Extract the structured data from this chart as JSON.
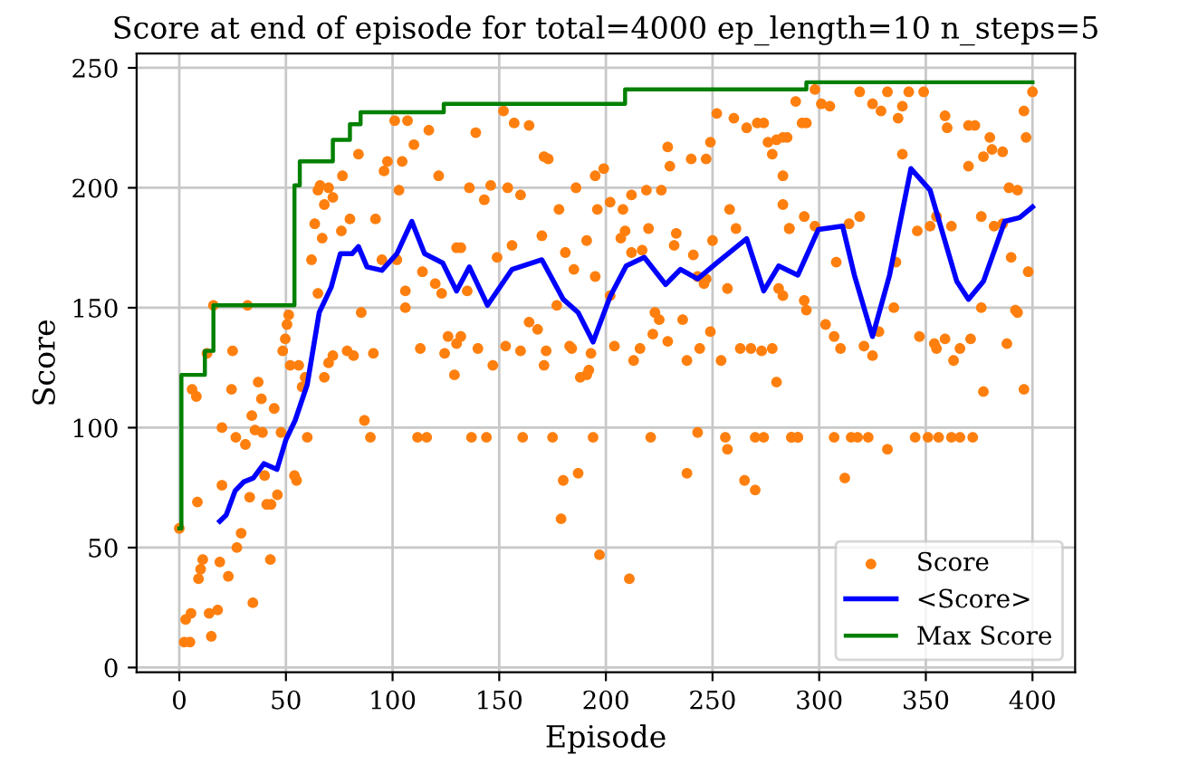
{
  "chart_data": {
    "type": "line",
    "title": "Score at end of episode for total=4000 ep_length=10 n_steps=5",
    "xlabel": "Episode",
    "ylabel": "Score",
    "xlim": [
      -20,
      420
    ],
    "xticks": [
      0,
      50,
      100,
      150,
      200,
      250,
      300,
      350,
      400
    ],
    "ylim": [
      -2,
      256
    ],
    "yticks": [
      0,
      50,
      100,
      150,
      200,
      250
    ],
    "grid": true,
    "legend": "bottom right",
    "series": [
      {
        "name": "Score",
        "type": "scatter",
        "marker": "circle",
        "color": "#ff7f0e",
        "x": [
          0,
          2.3,
          5,
          3,
          5.5,
          6,
          8,
          8.5,
          10,
          11,
          9,
          13,
          14,
          15,
          16,
          18,
          19,
          20,
          20,
          23,
          24.5,
          25,
          26.5,
          27,
          29,
          31,
          32,
          33,
          34.5,
          34,
          35.5,
          37,
          38.5,
          39,
          40,
          41,
          42.7,
          43,
          44.5,
          46,
          47.7,
          48.5,
          49.7,
          50.5,
          51.3,
          52,
          54,
          55,
          56,
          57.6,
          59,
          60,
          62,
          63.5,
          65,
          66,
          67,
          68,
          65,
          68,
          70,
          72,
          70,
          72,
          76,
          76.5,
          78.7,
          80,
          81.7,
          84,
          85.3,
          86.8,
          89.6,
          91,
          92,
          95,
          96,
          97.6,
          101,
          102,
          103,
          104.5,
          106,
          107,
          106,
          110,
          111.7,
          113,
          114,
          116,
          117,
          120,
          121.6,
          123,
          124.4,
          126,
          129,
          130,
          132,
          139,
          136,
          143,
          146,
          154,
          160,
          152,
          157,
          164,
          171,
          173,
          178,
          186,
          195,
          199,
          196,
          202,
          208,
          212,
          219,
          226,
          229,
          230,
          240,
          247,
          249,
          252,
          260,
          266,
          271,
          274,
          276,
          278,
          280,
          283,
          285,
          292,
          130,
          132,
          135,
          140,
          147,
          149,
          153,
          156,
          160,
          164,
          168,
          170,
          171,
          172,
          177,
          181,
          183,
          184,
          185,
          188,
          191,
          192,
          193,
          191,
          195,
          202,
          204,
          207,
          209,
          212,
          213,
          216,
          217,
          220,
          223,
          225,
          222,
          229,
          232,
          233,
          236,
          238,
          241,
          243,
          246,
          247,
          250,
          244,
          249,
          254,
          257,
          258,
          261,
          263,
          268,
          273,
          278,
          280,
          283,
          286,
          294,
          137,
          144,
          161,
          175,
          194,
          221,
          243,
          256,
          257,
          270,
          274,
          287,
          290,
          180,
          187,
          179,
          197,
          211,
          238,
          265,
          270,
          289,
          298,
          301,
          305,
          319,
          325,
          329,
          332,
          337,
          339,
          342,
          349,
          359,
          360,
          370,
          373,
          380,
          381,
          386,
          370,
          377,
          396,
          397,
          400,
          283,
          294,
          339,
          389,
          393,
          283,
          286,
          293,
          298,
          308,
          314,
          319,
          336,
          346,
          352,
          355,
          362,
          376,
          382,
          386,
          390,
          398,
          281,
          293,
          303,
          307,
          310,
          321,
          325,
          328,
          335,
          347,
          354,
          355,
          359,
          363,
          366,
          371,
          377,
          376,
          388,
          392,
          393,
          396,
          287,
          290,
          307,
          315,
          318,
          323,
          332,
          345,
          351,
          356,
          362,
          366,
          372,
          312
        ],
        "values": [
          58,
          10.6,
          10.6,
          20,
          22.6,
          116,
          113,
          69,
          41,
          45,
          37,
          131,
          22.6,
          13,
          151,
          24,
          44,
          100,
          76,
          38,
          116,
          132,
          96,
          50,
          56,
          93,
          151,
          71,
          27,
          105,
          99,
          119,
          112,
          98,
          80,
          68,
          45,
          68,
          108,
          72,
          98,
          132,
          137,
          143,
          147,
          126,
          80,
          78,
          126,
          117,
          121,
          96,
          170,
          185,
          199,
          201,
          179,
          193,
          156,
          121,
          127,
          130,
          200,
          196,
          182,
          205,
          132,
          187,
          130,
          214,
          148,
          103,
          96,
          131,
          187,
          170,
          207,
          211,
          228,
          170,
          199,
          211,
          157,
          228,
          150,
          218,
          96,
          133,
          165,
          96,
          224,
          160,
          205,
          156,
          131,
          138,
          122,
          135,
          175,
          223,
          200,
          195,
          201,
          200,
          197,
          232,
          227,
          226,
          213,
          212,
          191,
          200,
          205,
          208,
          191,
          194,
          191,
          197,
          199,
          199,
          217,
          209,
          212,
          212,
          219,
          231,
          229,
          225,
          227,
          227,
          219,
          214,
          220,
          205,
          221,
          227,
          175,
          138,
          157,
          133,
          126,
          171,
          134,
          176,
          132,
          144,
          141,
          180,
          126,
          132,
          151,
          173,
          134,
          133,
          166,
          121,
          122,
          124,
          131,
          178,
          163,
          155,
          134,
          179,
          182,
          173,
          128,
          133,
          174,
          183,
          148,
          145,
          139,
          136,
          176,
          181,
          145,
          128,
          172,
          163,
          160,
          162,
          178,
          133,
          140,
          128,
          158,
          191,
          183,
          133,
          133,
          132,
          133,
          119,
          155,
          183,
          149,
          96,
          96,
          96,
          96,
          96,
          96,
          98,
          96,
          91,
          96,
          96,
          96,
          96,
          78,
          81,
          62,
          47,
          37,
          81,
          78,
          74,
          236,
          241,
          235,
          234,
          240,
          235,
          232,
          240,
          229,
          234,
          240,
          240,
          230,
          225,
          226,
          226,
          221,
          216,
          215,
          209,
          213,
          232,
          221,
          240,
          221,
          227,
          214,
          200,
          199,
          193,
          183,
          188,
          184,
          169,
          185,
          188,
          169,
          182,
          184,
          188,
          184,
          188,
          184,
          185,
          171,
          165,
          158,
          153,
          143,
          138,
          133,
          134,
          130,
          140,
          150,
          138,
          135,
          133,
          137,
          128,
          133,
          137,
          115,
          150,
          135,
          149,
          148,
          116,
          96,
          96,
          96,
          96,
          96,
          96,
          91,
          96,
          96,
          96,
          96,
          96,
          96,
          79
        ]
      },
      {
        "name": "<Score>",
        "color": "#0000ff",
        "line_style": "solid",
        "x": [
          19,
          22,
          26.2,
          30.4,
          34.7,
          39.7,
          45.8,
          50,
          54.3,
          60,
          65.6,
          71.2,
          75.5,
          81,
          84,
          88,
          95,
          102,
          109,
          115,
          123.5,
          130,
          136,
          144.5,
          156,
          170,
          180,
          187,
          194,
          202,
          209.5,
          218,
          228,
          235,
          243,
          252,
          266,
          274,
          281,
          290,
          299.6,
          311,
          316.5,
          325,
          333,
          343,
          352,
          364.5,
          370,
          377,
          387,
          394,
          400
        ],
        "values": [
          61,
          63.6,
          73.7,
          77.5,
          79,
          85,
          82.6,
          95,
          103,
          118,
          148,
          158.5,
          172.5,
          172.5,
          175.5,
          167,
          165.6,
          172.5,
          186,
          172.5,
          168.7,
          157,
          167,
          151,
          166,
          170,
          153.5,
          148,
          135.7,
          154.7,
          167.4,
          171,
          159.7,
          166,
          162,
          168.7,
          178.8,
          157,
          167.4,
          163.6,
          182.6,
          184,
          163.6,
          138,
          163.6,
          208,
          199,
          161,
          153.5,
          161,
          186,
          187.6,
          192
        ]
      },
      {
        "name": "Max Score",
        "type": "step",
        "color": "#008000",
        "line_style": "solid",
        "x": [
          0,
          1,
          12,
          16,
          54,
          56.5,
          72,
          80,
          85,
          124,
          209,
          294,
          400
        ],
        "values": [
          58,
          122,
          132,
          151,
          201,
          211,
          220,
          226.5,
          231.5,
          235,
          241,
          244,
          244
        ]
      }
    ]
  }
}
